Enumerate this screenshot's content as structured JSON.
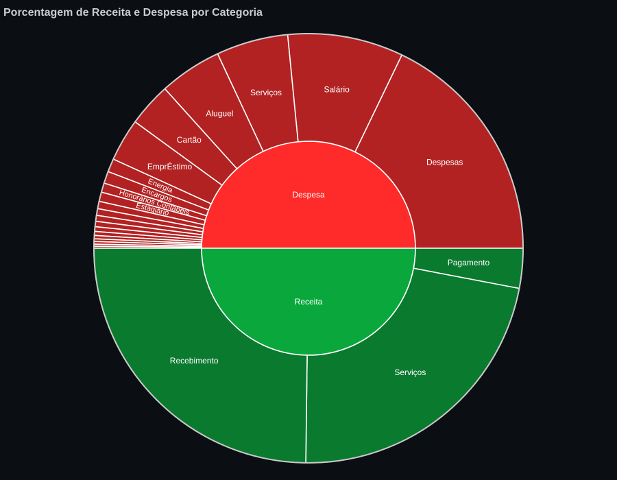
{
  "title": "Porcentagem de Receita e Despesa por Categoria",
  "chart_data": {
    "type": "sunburst",
    "title": "Porcentagem de Receita e Despesa por Categoria",
    "colors": {
      "background": "#0b0f14",
      "despesa_inner": "#ff2b2b",
      "despesa_outer": "#b22222",
      "receita_inner": "#0aa83c",
      "receita_outer": "#0a7a2e"
    },
    "nodes": [
      {
        "name": "Despesa",
        "value": 50.0,
        "children": [
          {
            "name": "Despesas",
            "value": 17.8
          },
          {
            "name": "Salário",
            "value": 8.7
          },
          {
            "name": "Serviços",
            "value": 5.4
          },
          {
            "name": "Aluguel",
            "value": 4.7
          },
          {
            "name": "Cartão",
            "value": 3.3
          },
          {
            "name": "EmprÉstimo",
            "value": 3.2
          },
          {
            "name": "Energia",
            "value": 1.0
          },
          {
            "name": "Encargos",
            "value": 0.9
          },
          {
            "name": "Honorários Contábeis",
            "value": 0.7
          },
          {
            "name": "Estagiário",
            "value": 0.7
          },
          {
            "name": "",
            "value": 0.55
          },
          {
            "name": "",
            "value": 0.5
          },
          {
            "name": "",
            "value": 0.45
          },
          {
            "name": "",
            "value": 0.4
          },
          {
            "name": "",
            "value": 0.35
          },
          {
            "name": "",
            "value": 0.3
          },
          {
            "name": "",
            "value": 0.25
          },
          {
            "name": "",
            "value": 0.2
          },
          {
            "name": "",
            "value": 0.2
          },
          {
            "name": "",
            "value": 0.15
          },
          {
            "name": "",
            "value": 0.15
          }
        ]
      },
      {
        "name": "Receita",
        "value": 50.0,
        "children": [
          {
            "name": "Pagamento",
            "value": 3.0
          },
          {
            "name": "Serviços",
            "value": 22.2
          },
          {
            "name": "Recebimento",
            "value": 24.8
          }
        ]
      }
    ]
  }
}
